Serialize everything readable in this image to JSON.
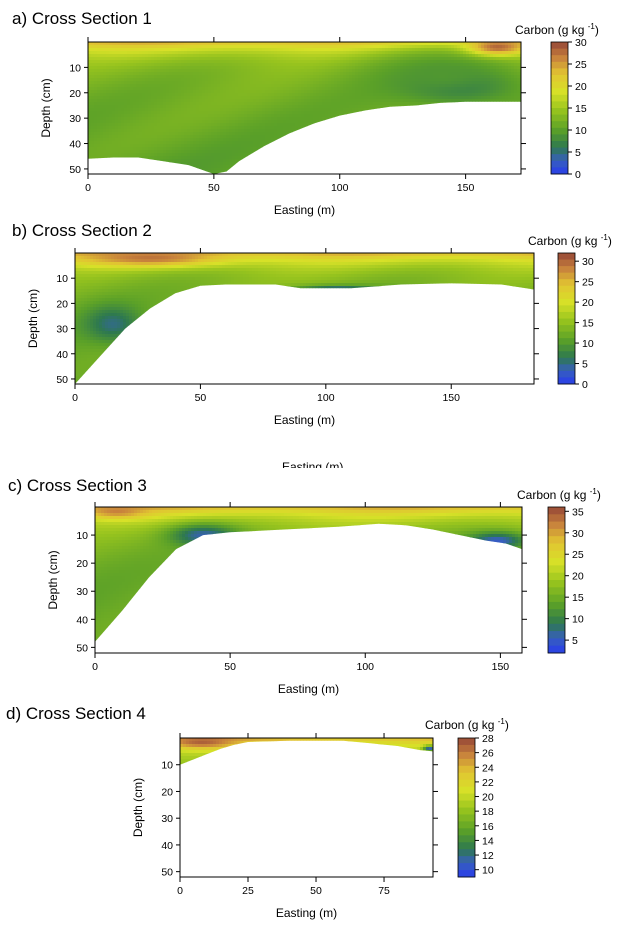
{
  "chart_data": [
    {
      "type": "heatmap",
      "title": "a) Cross Section 1",
      "xlabel": "Easting (m)",
      "ylabel": "Depth (cm)",
      "xlim": [
        0,
        172
      ],
      "ylim": [
        52,
        0
      ],
      "xticks": [
        0,
        50,
        100,
        150
      ],
      "yticks": [
        10,
        20,
        30,
        40,
        50
      ],
      "colorbar": {
        "title": "Carbon (g kg",
        "title_sup": "-1",
        "title_close": ")",
        "min": 0,
        "max": 30,
        "ticks": [
          0,
          5,
          10,
          15,
          20,
          25,
          30
        ]
      },
      "boundary": [
        [
          0,
          46
        ],
        [
          10,
          45.5
        ],
        [
          20,
          45.5
        ],
        [
          30,
          47
        ],
        [
          40,
          48.5
        ],
        [
          50,
          52
        ],
        [
          55,
          51
        ],
        [
          60,
          47
        ],
        [
          70,
          41
        ],
        [
          80,
          36
        ],
        [
          90,
          32
        ],
        [
          100,
          29
        ],
        [
          110,
          27
        ],
        [
          120,
          25.5
        ],
        [
          130,
          25
        ],
        [
          140,
          24
        ],
        [
          150,
          23.5
        ],
        [
          160,
          23.5
        ],
        [
          172,
          23.5
        ]
      ],
      "features": [
        {
          "type": "blue_zone",
          "cx": 146,
          "cy": 17,
          "rx": 24,
          "ry": 7.5,
          "value": 3
        },
        {
          "type": "green_zone",
          "cx": 140,
          "cy": 13,
          "rx": 42,
          "ry": 14,
          "value": 9
        },
        {
          "type": "brown_cap",
          "cx": 162,
          "cy": 2,
          "rx": 14,
          "ry": 4,
          "value": 28
        }
      ]
    },
    {
      "type": "heatmap",
      "title": "b) Cross Section 2",
      "xlabel": "Easting (m)",
      "ylabel": "Depth (cm)",
      "xlim": [
        0,
        183
      ],
      "ylim": [
        52,
        0
      ],
      "xticks": [
        0,
        50,
        100,
        150
      ],
      "yticks": [
        10,
        20,
        30,
        40,
        50
      ],
      "colorbar": {
        "title": "Carbon (g kg",
        "title_sup": "-1",
        "title_close": ")",
        "min": 0,
        "max": 32,
        "ticks": [
          0,
          5,
          10,
          15,
          20,
          25,
          30
        ]
      },
      "boundary": [
        [
          0,
          52
        ],
        [
          10,
          41
        ],
        [
          20,
          30
        ],
        [
          30,
          22
        ],
        [
          40,
          16
        ],
        [
          50,
          13
        ],
        [
          60,
          12.5
        ],
        [
          80,
          12.5
        ],
        [
          90,
          14
        ],
        [
          110,
          14
        ],
        [
          130,
          12.5
        ],
        [
          150,
          12
        ],
        [
          170,
          12.5
        ],
        [
          183,
          14.5
        ]
      ],
      "features": [
        {
          "type": "blue_zone",
          "cx": 15,
          "cy": 28,
          "rx": 14,
          "ry": 9,
          "value": 5
        },
        {
          "type": "brown_cap",
          "cx": 30,
          "cy": 2,
          "rx": 35,
          "ry": 4,
          "value": 29
        },
        {
          "type": "blue_zone",
          "cx": 105,
          "cy": 14.5,
          "rx": 22,
          "ry": 2,
          "value": 3
        }
      ]
    },
    {
      "type": "heatmap",
      "title": "c) Cross Section 3",
      "xlabel": "Easting (m)",
      "ylabel": "Depth (cm)",
      "xlim": [
        0,
        158
      ],
      "ylim": [
        52,
        0
      ],
      "xticks": [
        0,
        50,
        100,
        150
      ],
      "yticks": [
        10,
        20,
        30,
        40,
        50
      ],
      "colorbar": {
        "title": "Carbon (g kg",
        "title_sup": "-1",
        "title_close": ")",
        "min": 2,
        "max": 36,
        "ticks": [
          5,
          10,
          15,
          20,
          25,
          30,
          35
        ]
      },
      "boundary": [
        [
          0,
          48
        ],
        [
          10,
          37
        ],
        [
          20,
          25
        ],
        [
          30,
          15
        ],
        [
          40,
          10
        ],
        [
          50,
          9
        ],
        [
          60,
          8.5
        ],
        [
          70,
          8
        ],
        [
          90,
          7
        ],
        [
          105,
          6
        ],
        [
          115,
          6.5
        ],
        [
          125,
          8
        ],
        [
          135,
          10
        ],
        [
          145,
          12
        ],
        [
          152,
          13
        ],
        [
          158,
          15
        ]
      ],
      "features": [
        {
          "type": "brown_cap",
          "cx": 8,
          "cy": 1.5,
          "rx": 14,
          "ry": 3,
          "value": 32
        },
        {
          "type": "blue_zone",
          "cx": 40,
          "cy": 10,
          "rx": 16,
          "ry": 5,
          "value": 6
        },
        {
          "type": "blue_zone",
          "cx": 148,
          "cy": 12,
          "rx": 14,
          "ry": 4,
          "value": 5
        }
      ]
    },
    {
      "type": "heatmap",
      "title": "d) Cross Section 4",
      "xlabel": "Easting (m)",
      "ylabel": "Depth (cm)",
      "xlim": [
        0,
        93
      ],
      "ylim": [
        52,
        0
      ],
      "xticks": [
        0,
        25,
        50,
        75
      ],
      "yticks": [
        10,
        20,
        30,
        40,
        50
      ],
      "colorbar": {
        "title": "Carbon (g kg",
        "title_sup": "-1",
        "title_close": ")",
        "min": 9,
        "max": 28,
        "ticks": [
          10,
          12,
          14,
          16,
          18,
          20,
          22,
          24,
          26,
          28
        ]
      },
      "boundary": [
        [
          0,
          10
        ],
        [
          5,
          8
        ],
        [
          10,
          6
        ],
        [
          15,
          4
        ],
        [
          20,
          2.5
        ],
        [
          25,
          1.5
        ],
        [
          40,
          1
        ],
        [
          60,
          1
        ],
        [
          70,
          2
        ],
        [
          80,
          3
        ],
        [
          88,
          4.5
        ],
        [
          93,
          5
        ]
      ],
      "features": [
        {
          "type": "brown_cap",
          "cx": 8,
          "cy": 1.5,
          "rx": 16,
          "ry": 3,
          "value": 27
        },
        {
          "type": "blue_zone",
          "cx": 91,
          "cy": 4,
          "rx": 3,
          "ry": 1.5,
          "value": 11
        }
      ]
    }
  ],
  "stray_text": "Easting (m)"
}
